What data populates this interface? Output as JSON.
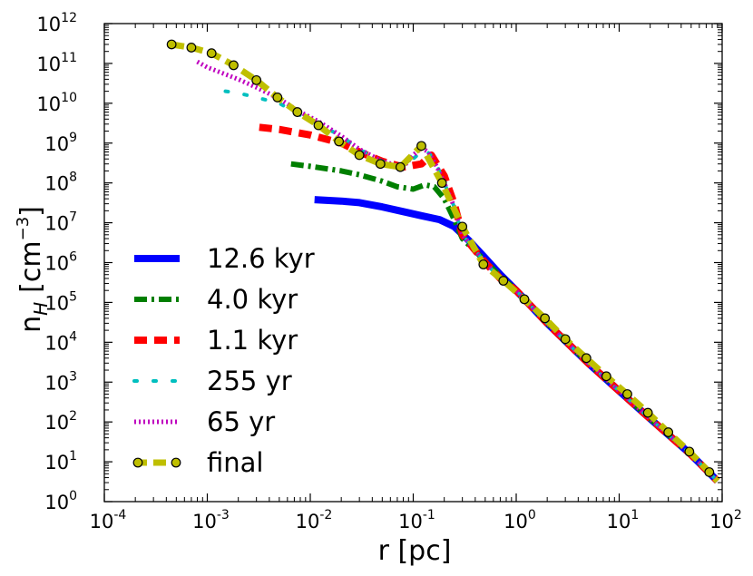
{
  "chart_data": {
    "type": "line",
    "scale": {
      "x": "log",
      "y": "log"
    },
    "xlabel": "r [pc]",
    "ylabel_main": "n",
    "ylabel_sub": "H",
    "ylabel_unit_open": "[cm",
    "ylabel_unit_exp": "−3",
    "ylabel_unit_close": "]",
    "xlim": [
      0.0001,
      100
    ],
    "ylim": [
      1,
      1000000000000
    ],
    "xticks": [
      {
        "base": "10",
        "exp": "-4",
        "value": 0.0001
      },
      {
        "base": "10",
        "exp": "-3",
        "value": 0.001
      },
      {
        "base": "10",
        "exp": "-2",
        "value": 0.01
      },
      {
        "base": "10",
        "exp": "-1",
        "value": 0.1
      },
      {
        "base": "10",
        "exp": "0",
        "value": 1
      },
      {
        "base": "10",
        "exp": "1",
        "value": 10
      },
      {
        "base": "10",
        "exp": "2",
        "value": 100
      }
    ],
    "yticks": [
      {
        "base": "10",
        "exp": "0",
        "value": 1
      },
      {
        "base": "10",
        "exp": "1",
        "value": 10
      },
      {
        "base": "10",
        "exp": "2",
        "value": 100
      },
      {
        "base": "10",
        "exp": "3",
        "value": 1000
      },
      {
        "base": "10",
        "exp": "4",
        "value": 10000
      },
      {
        "base": "10",
        "exp": "5",
        "value": 100000
      },
      {
        "base": "10",
        "exp": "6",
        "value": 1000000
      },
      {
        "base": "10",
        "exp": "7",
        "value": 10000000
      },
      {
        "base": "10",
        "exp": "8",
        "value": 100000000
      },
      {
        "base": "10",
        "exp": "9",
        "value": 1000000000
      },
      {
        "base": "10",
        "exp": "10",
        "value": 10000000000
      },
      {
        "base": "10",
        "exp": "11",
        "value": 100000000000
      },
      {
        "base": "10",
        "exp": "12",
        "value": 1000000000000
      }
    ],
    "grid": false,
    "legend_position": "bottom-left",
    "series": [
      {
        "name": "12.6 kyr",
        "color": "#0000ff",
        "style": "solid",
        "points": [
          [
            0.011,
            38000000.0
          ],
          [
            0.02,
            35000000.0
          ],
          [
            0.03,
            32000000.0
          ],
          [
            0.05,
            25000000.0
          ],
          [
            0.08,
            19000000.0
          ],
          [
            0.12,
            15000000.0
          ],
          [
            0.18,
            12000000.0
          ],
          [
            0.25,
            8000000.0
          ],
          [
            0.35,
            3500000.0
          ],
          [
            0.5,
            1300000.0
          ],
          [
            0.7,
            500000.0
          ],
          [
            1,
            200000.0
          ],
          [
            2,
            30000.0
          ],
          [
            5,
            3000
          ],
          [
            10,
            600
          ],
          [
            20,
            120
          ],
          [
            50,
            15
          ],
          [
            90,
            3.3
          ]
        ]
      },
      {
        "name": "4.0 kyr",
        "color": "#007f00",
        "style": "dashdot",
        "points": [
          [
            0.0065,
            300000000.0
          ],
          [
            0.01,
            260000000.0
          ],
          [
            0.02,
            200000000.0
          ],
          [
            0.03,
            160000000.0
          ],
          [
            0.05,
            110000000.0
          ],
          [
            0.07,
            80000000.0
          ],
          [
            0.1,
            70000000.0
          ],
          [
            0.13,
            90000000.0
          ],
          [
            0.16,
            80000000.0
          ],
          [
            0.2,
            40000000.0
          ],
          [
            0.25,
            12000000.0
          ],
          [
            0.3,
            4000000.0
          ],
          [
            0.5,
            1100000.0
          ],
          [
            0.7,
            450000.0
          ],
          [
            1,
            200000.0
          ],
          [
            2,
            30000.0
          ],
          [
            5,
            3000
          ],
          [
            10,
            600
          ],
          [
            20,
            120
          ],
          [
            50,
            15
          ],
          [
            90,
            3.3
          ]
        ]
      },
      {
        "name": "1.1 kyr",
        "color": "#ff0000",
        "style": "dashed",
        "points": [
          [
            0.0032,
            2500000000.0
          ],
          [
            0.005,
            2200000000.0
          ],
          [
            0.01,
            1600000000.0
          ],
          [
            0.02,
            1000000000.0
          ],
          [
            0.03,
            600000000.0
          ],
          [
            0.05,
            350000000.0
          ],
          [
            0.08,
            250000000.0
          ],
          [
            0.12,
            300000000.0
          ],
          [
            0.15,
            500000000.0
          ],
          [
            0.2,
            150000000.0
          ],
          [
            0.25,
            30000000.0
          ],
          [
            0.3,
            5000000.0
          ],
          [
            0.5,
            1000000.0
          ],
          [
            0.7,
            400000.0
          ],
          [
            1,
            200000.0
          ],
          [
            2,
            30000.0
          ],
          [
            5,
            3000
          ],
          [
            10,
            600
          ],
          [
            20,
            120
          ],
          [
            50,
            15
          ],
          [
            90,
            3.3
          ]
        ]
      },
      {
        "name": "255 yr",
        "color": "#00bfbf",
        "style": "dotted",
        "points": [
          [
            0.0015,
            20000000000.0
          ],
          [
            0.002,
            18000000000.0
          ],
          [
            0.003,
            14000000000.0
          ],
          [
            0.005,
            10000000000.0
          ],
          [
            0.008,
            5000000000.0
          ],
          [
            0.012,
            3000000000.0
          ],
          [
            0.02,
            1500000000.0
          ],
          [
            0.03,
            700000000.0
          ],
          [
            0.05,
            350000000.0
          ],
          [
            0.08,
            250000000.0
          ],
          [
            0.11,
            500000000.0
          ],
          [
            0.13,
            700000000.0
          ],
          [
            0.16,
            400000000.0
          ],
          [
            0.2,
            100000000.0
          ],
          [
            0.25,
            25000000.0
          ],
          [
            0.3,
            5000000.0
          ],
          [
            0.5,
            1000000.0
          ],
          [
            0.7,
            400000.0
          ],
          [
            1,
            200000.0
          ],
          [
            2,
            30000.0
          ],
          [
            5,
            3000
          ],
          [
            10,
            600
          ],
          [
            20,
            120
          ],
          [
            50,
            15
          ],
          [
            90,
            3.3
          ]
        ]
      },
      {
        "name": "65 yr",
        "color": "#bf00bf",
        "style": "dense-dotted",
        "points": [
          [
            0.0008,
            110000000000.0
          ],
          [
            0.001,
            80000000000.0
          ],
          [
            0.002,
            40000000000.0
          ],
          [
            0.003,
            25000000000.0
          ],
          [
            0.005,
            13000000000.0
          ],
          [
            0.008,
            6000000000.0
          ],
          [
            0.012,
            3500000000.0
          ],
          [
            0.02,
            1500000000.0
          ],
          [
            0.03,
            700000000.0
          ],
          [
            0.05,
            350000000.0
          ],
          [
            0.08,
            250000000.0
          ],
          [
            0.1,
            500000000.0
          ],
          [
            0.12,
            750000000.0
          ],
          [
            0.14,
            600000000.0
          ],
          [
            0.17,
            250000000.0
          ],
          [
            0.2,
            100000000.0
          ],
          [
            0.25,
            25000000.0
          ],
          [
            0.3,
            5000000.0
          ],
          [
            0.5,
            1000000.0
          ],
          [
            0.7,
            400000.0
          ],
          [
            1,
            200000.0
          ],
          [
            2,
            30000.0
          ],
          [
            5,
            3000
          ],
          [
            10,
            600
          ],
          [
            20,
            120
          ],
          [
            50,
            15
          ],
          [
            90,
            3.3
          ]
        ]
      },
      {
        "name": "final",
        "color": "#bfbf00",
        "style": "dashed-markers",
        "marker_fill": "#bfbf00",
        "marker_edge": "#000000",
        "points": [
          [
            0.00045,
            300000000000.0
          ],
          [
            0.0007,
            250000000000.0
          ],
          [
            0.0011,
            180000000000.0
          ],
          [
            0.0018,
            90000000000.0
          ],
          [
            0.003,
            38000000000.0
          ],
          [
            0.0048,
            14000000000.0
          ],
          [
            0.0075,
            6000000000.0
          ],
          [
            0.012,
            2800000000.0
          ],
          [
            0.019,
            1100000000.0
          ],
          [
            0.03,
            500000000.0
          ],
          [
            0.048,
            300000000.0
          ],
          [
            0.075,
            250000000.0
          ],
          [
            0.12,
            850000000.0
          ],
          [
            0.19,
            100000000.0
          ],
          [
            0.3,
            8000000.0
          ],
          [
            0.48,
            900000.0
          ],
          [
            0.75,
            350000.0
          ],
          [
            1.2,
            120000.0
          ],
          [
            1.9,
            40000.0
          ],
          [
            3,
            12000.0
          ],
          [
            4.8,
            4000
          ],
          [
            7.5,
            1400
          ],
          [
            12,
            500
          ],
          [
            19,
            170
          ],
          [
            30,
            55
          ],
          [
            48,
            18
          ],
          [
            75,
            5.5
          ],
          [
            90,
            3.3
          ]
        ],
        "marker_indices": [
          0,
          1,
          2,
          3,
          4,
          5,
          6,
          7,
          8,
          9,
          10,
          11,
          12,
          13,
          14,
          15,
          16,
          17,
          18,
          19,
          20,
          21,
          22,
          23,
          24,
          25,
          26
        ]
      }
    ]
  }
}
